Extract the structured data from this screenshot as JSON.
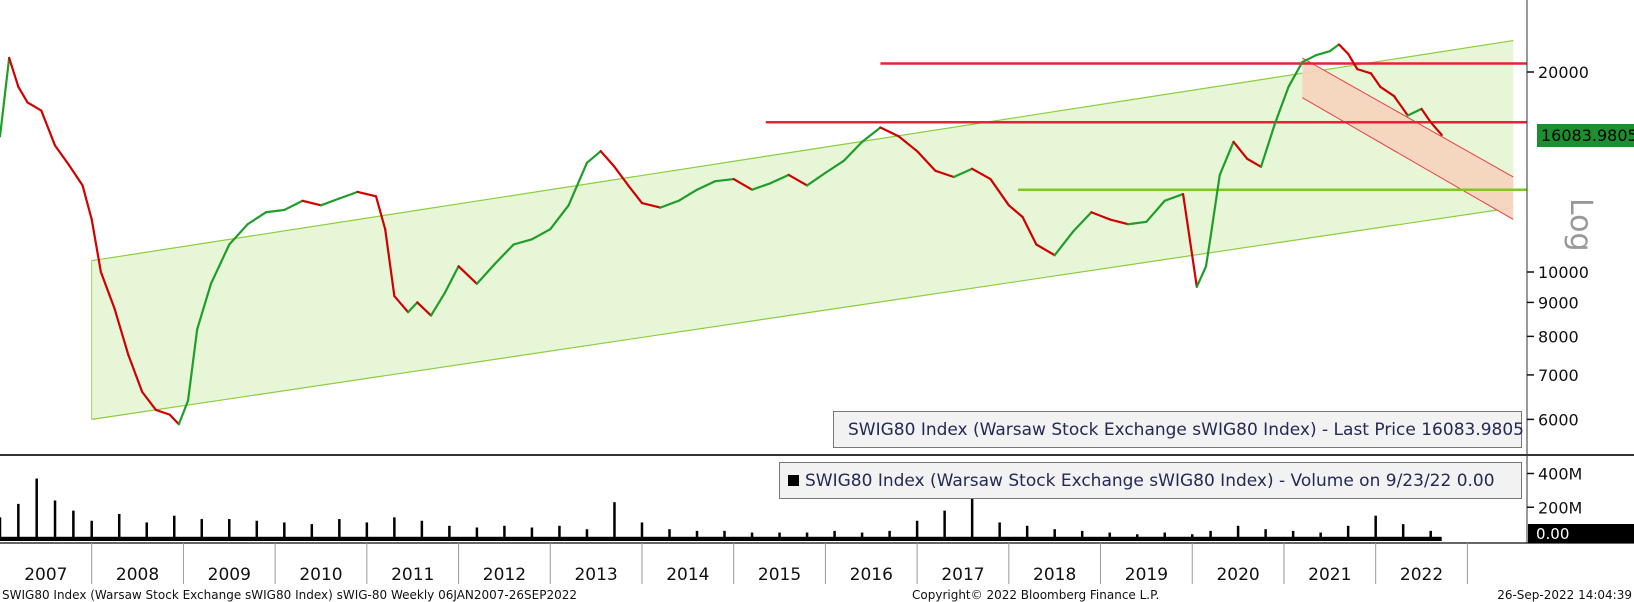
{
  "chart_data": [
    {
      "type": "line",
      "panel": "price",
      "scale": "log",
      "scale_label": "Log",
      "ylim": [
        5600,
        23000
      ],
      "yticks": [
        "20000",
        "10000",
        "9000",
        "8000",
        "7000",
        "6000"
      ],
      "ytick_values": [
        20000,
        10000,
        9000,
        8000,
        7000,
        6000
      ],
      "legend": "SWIG80 Index (Warsaw Stock Exchange sWIG80 Index) - Last Price 16083.9805",
      "last_price_label": "16083.9805",
      "last_price": 16083.9805,
      "series": [
        {
          "name": "SWIG80 Index (Warsaw Stock Exchange sWIG80 Index) - Last Price",
          "x": [
            2007.0,
            2007.1,
            2007.2,
            2007.3,
            2007.45,
            2007.6,
            2007.75,
            2007.9,
            2008.0,
            2008.1,
            2008.25,
            2008.4,
            2008.55,
            2008.7,
            2008.85,
            2008.95,
            2009.05,
            2009.15,
            2009.3,
            2009.5,
            2009.7,
            2009.9,
            2010.1,
            2010.3,
            2010.5,
            2010.7,
            2010.9,
            2011.1,
            2011.2,
            2011.3,
            2011.45,
            2011.55,
            2011.7,
            2011.85,
            2012.0,
            2012.2,
            2012.4,
            2012.6,
            2012.8,
            2013.0,
            2013.2,
            2013.4,
            2013.55,
            2013.7,
            2013.85,
            2014.0,
            2014.2,
            2014.4,
            2014.6,
            2014.8,
            2015.0,
            2015.2,
            2015.4,
            2015.6,
            2015.8,
            2016.0,
            2016.2,
            2016.4,
            2016.6,
            2016.8,
            2017.0,
            2017.2,
            2017.4,
            2017.6,
            2017.8,
            2018.0,
            2018.15,
            2018.3,
            2018.5,
            2018.7,
            2018.9,
            2019.1,
            2019.3,
            2019.5,
            2019.7,
            2019.9,
            2020.05,
            2020.15,
            2020.2,
            2020.3,
            2020.45,
            2020.6,
            2020.75,
            2020.9,
            2021.05,
            2021.2,
            2021.35,
            2021.5,
            2021.6,
            2021.7,
            2021.8,
            2021.95,
            2022.05,
            2022.2,
            2022.35,
            2022.5,
            2022.6,
            2022.72
          ],
          "y": [
            16000,
            21000,
            19000,
            18000,
            17500,
            15500,
            14500,
            13500,
            12000,
            10000,
            8800,
            7500,
            6600,
            6200,
            6100,
            5900,
            6400,
            8200,
            9600,
            11000,
            11800,
            12300,
            12400,
            12800,
            12600,
            12900,
            13200,
            13000,
            11600,
            9200,
            8700,
            9000,
            8600,
            9300,
            10200,
            9600,
            10300,
            11000,
            11200,
            11600,
            12600,
            14600,
            15200,
            14400,
            13500,
            12700,
            12500,
            12800,
            13300,
            13700,
            13800,
            13300,
            13600,
            14000,
            13500,
            14100,
            14700,
            15700,
            16500,
            16000,
            15200,
            14200,
            13900,
            14300,
            13800,
            12600,
            12100,
            11000,
            10600,
            11500,
            12300,
            12000,
            11800,
            11900,
            12800,
            13100,
            9500,
            10200,
            11300,
            14000,
            15700,
            14800,
            14400,
            16700,
            19000,
            20700,
            21200,
            21500,
            22000,
            21300,
            20200,
            19900,
            19000,
            18400,
            17200,
            17600,
            16800,
            16084
          ]
        }
      ],
      "reference_levels": [
        20600,
        16800,
        13300
      ],
      "channel": {
        "x": [
          2008.0,
          2023.5
        ],
        "lower": [
          6000,
          12500
        ],
        "upper": [
          10400,
          22300
        ]
      },
      "downtrend_channel": {
        "x": [
          2021.2,
          2023.5
        ],
        "upper": [
          21000,
          13900
        ],
        "lower": [
          18300,
          12000
        ]
      }
    },
    {
      "type": "bar",
      "panel": "volume",
      "ylim": [
        0,
        480
      ],
      "yticks": [
        "400M",
        "200M"
      ],
      "ytick_values": [
        400,
        200
      ],
      "legend": "SWIG80 Index (Warsaw Stock Exchange sWIG80 Index) - Volume on 9/23/22 0.00",
      "last_value_label": "0.00",
      "last_value": 0.0,
      "series": [
        {
          "name": "SWIG80 Index (Warsaw Stock Exchange sWIG80 Index) - Volume",
          "x": [
            2007.0,
            2007.2,
            2007.4,
            2007.6,
            2007.8,
            2008.0,
            2008.3,
            2008.6,
            2008.9,
            2009.2,
            2009.5,
            2009.8,
            2010.1,
            2010.4,
            2010.7,
            2011.0,
            2011.3,
            2011.6,
            2011.9,
            2012.2,
            2012.5,
            2012.8,
            2013.1,
            2013.4,
            2013.7,
            2014.0,
            2014.3,
            2014.6,
            2014.9,
            2015.2,
            2015.5,
            2015.8,
            2016.1,
            2016.4,
            2016.7,
            2017.0,
            2017.3,
            2017.6,
            2017.9,
            2018.2,
            2018.5,
            2018.8,
            2019.1,
            2019.4,
            2019.7,
            2020.0,
            2020.2,
            2020.5,
            2020.8,
            2021.1,
            2021.4,
            2021.7,
            2022.0,
            2022.3,
            2022.6,
            2022.72
          ],
          "y": [
            140,
            220,
            370,
            240,
            180,
            120,
            160,
            110,
            150,
            130,
            130,
            120,
            110,
            100,
            130,
            110,
            140,
            120,
            90,
            80,
            90,
            80,
            90,
            70,
            230,
            110,
            70,
            60,
            60,
            50,
            50,
            50,
            60,
            50,
            60,
            120,
            180,
            320,
            110,
            90,
            70,
            60,
            50,
            40,
            50,
            40,
            60,
            90,
            70,
            60,
            50,
            90,
            150,
            100,
            60,
            0
          ]
        }
      ]
    }
  ],
  "x_axis": {
    "years": [
      "2007",
      "2008",
      "2009",
      "2010",
      "2011",
      "2012",
      "2013",
      "2014",
      "2015",
      "2016",
      "2017",
      "2018",
      "2019",
      "2020",
      "2021",
      "2022"
    ],
    "year_values": [
      2007,
      2008,
      2009,
      2010,
      2011,
      2012,
      2013,
      2014,
      2015,
      2016,
      2017,
      2018,
      2019,
      2020,
      2021,
      2022
    ]
  },
  "footer": {
    "left": "SWIG80 Index (Warsaw Stock Exchange sWIG80 Index) sWIG-80  Weekly 06JAN2007-26SEP2022",
    "center": "Copyright© 2022 Bloomberg Finance L.P.",
    "right": "26-Sep-2022 14:04:39"
  },
  "colors": {
    "up": "#1e9e28",
    "down": "#d00000",
    "reference_line": "#e8203a",
    "support_line": "#7fc820",
    "channel_fill": "#e8f6d8",
    "channel_edge": "#8ccd3c",
    "downtrend_fill": "#f6d3bd",
    "downtrend_edge": "#e84040",
    "legend_price_swatch": "#2ec02e",
    "legend_volume_swatch": "#000000"
  }
}
